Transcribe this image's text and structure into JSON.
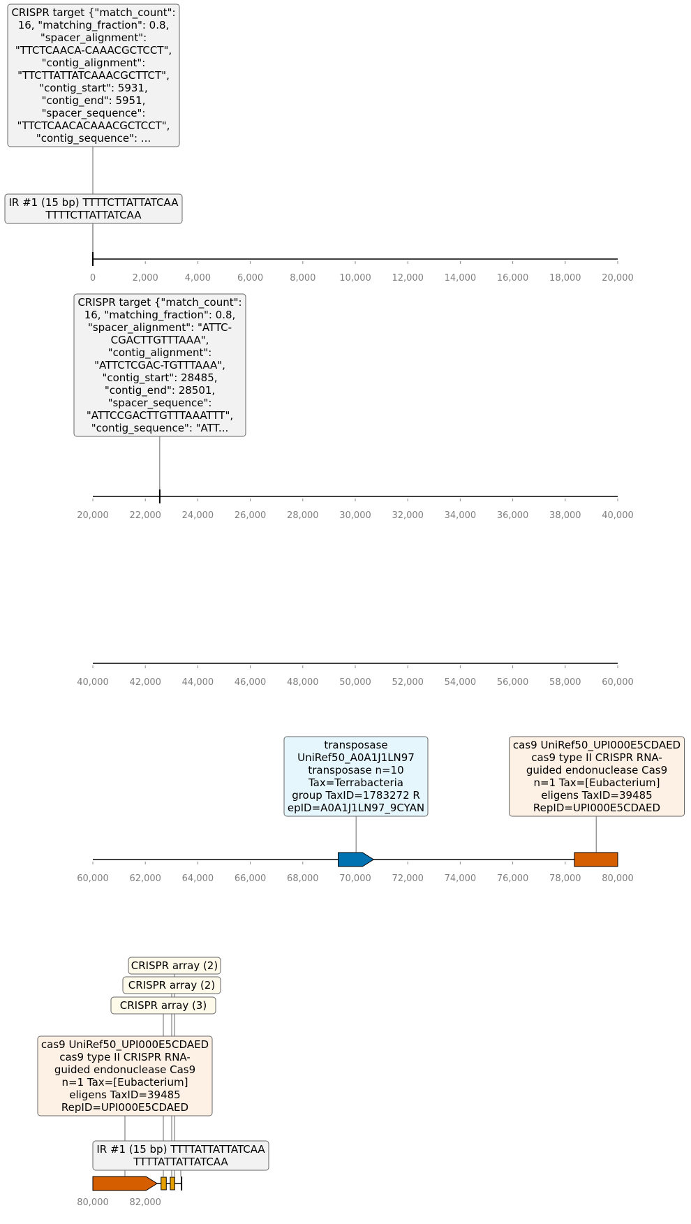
{
  "colors": {
    "axis": "#000000",
    "tick_label": "#808080",
    "cas9_fill": "#d55e00",
    "transposase_fill": "#0072b2",
    "crispr_array_fill": "#e69f00",
    "box_grey": "#f2f2f2",
    "box_blue": "#e5f6fd",
    "box_orange": "#fdf0e5",
    "box_cream": "#fdfaea"
  },
  "tracks": [
    {
      "range": [
        0,
        20000
      ],
      "ticks": [
        0,
        2000,
        4000,
        6000,
        8000,
        10000,
        12000,
        14000,
        16000,
        18000,
        20000
      ],
      "tick_labels": [
        "0",
        "2,000",
        "4,000",
        "6,000",
        "8,000",
        "10,000",
        "12,000",
        "14,000",
        "16,000",
        "18,000",
        "20,000"
      ],
      "features": [
        {
          "kind": "mark",
          "position": 0
        },
        {
          "kind": "mark",
          "position": 0
        }
      ],
      "labels": [
        {
          "anchor": 0,
          "style": "grey",
          "lines": [
            "CRISPR target {\"match_count\":",
            "16, \"matching_fraction\": 0.8,",
            "\"spacer_alignment\":",
            "\"TTCTCAACA-CAAACGCTCCT\",",
            "\"contig_alignment\":",
            "\"TTCTTATTATCAAACGCTTCT\",",
            "\"contig_start\": 5931,",
            "\"contig_end\": 5951,",
            "\"spacer_sequence\":",
            "\"TTCTCAACACAAACGCTCCT\",",
            "\"contig_sequence\": ..."
          ]
        },
        {
          "anchor": 0,
          "style": "grey",
          "lines": [
            "IR #1 (15 bp) TTTTCTTATTATCAA",
            "TTTTCTTATTATCAA"
          ]
        }
      ]
    },
    {
      "range": [
        20000,
        40000
      ],
      "ticks": [
        20000,
        22000,
        24000,
        26000,
        28000,
        30000,
        32000,
        34000,
        36000,
        38000,
        40000
      ],
      "tick_labels": [
        "20,000",
        "22,000",
        "24,000",
        "26,000",
        "28,000",
        "30,000",
        "32,000",
        "34,000",
        "36,000",
        "38,000",
        "40,000"
      ],
      "features": [
        {
          "kind": "mark",
          "position": 22550
        }
      ],
      "labels": [
        {
          "anchor": 22550,
          "style": "grey",
          "lines": [
            "CRISPR target {\"match_count\":",
            "16, \"matching_fraction\": 0.8,",
            "\"spacer_alignment\": \"ATTC-",
            "CGACTTGTTTAAA\",",
            "\"contig_alignment\":",
            "\"ATTCTCGAC-TGTTTAAA\",",
            "\"contig_start\": 28485,",
            "\"contig_end\": 28501,",
            "\"spacer_sequence\":",
            "\"ATTCCGACTTGTTTAAATTT\",",
            "\"contig_sequence\": \"ATT..."
          ]
        }
      ]
    },
    {
      "range": [
        40000,
        60000
      ],
      "ticks": [
        40000,
        42000,
        44000,
        46000,
        48000,
        50000,
        52000,
        54000,
        56000,
        58000,
        60000
      ],
      "tick_labels": [
        "40,000",
        "42,000",
        "44,000",
        "46,000",
        "48,000",
        "50,000",
        "52,000",
        "54,000",
        "56,000",
        "58,000",
        "60,000"
      ],
      "features": [],
      "labels": []
    },
    {
      "range": [
        60000,
        80000
      ],
      "ticks": [
        60000,
        62000,
        64000,
        66000,
        68000,
        70000,
        72000,
        74000,
        76000,
        78000,
        80000
      ],
      "tick_labels": [
        "60,000",
        "62,000",
        "64,000",
        "66,000",
        "68,000",
        "70,000",
        "72,000",
        "74,000",
        "76,000",
        "78,000",
        "80,000"
      ],
      "features": [
        {
          "kind": "gene",
          "start": 69350,
          "end": 70700,
          "strand": 1,
          "color": "transposase_fill"
        },
        {
          "kind": "gene",
          "start": 78350,
          "end": 80000,
          "strand": 1,
          "color": "cas9_fill"
        }
      ],
      "labels": [
        {
          "anchor": 70030,
          "style": "blue",
          "lines": [
            "transposase",
            "UniRef50_A0A1J1LN97",
            "transposase n=10",
            "Tax=Terrabacteria",
            "group TaxID=1783272 R",
            "epID=A0A1J1LN97_9CYAN"
          ]
        },
        {
          "anchor": 79180,
          "style": "orange",
          "lines": [
            "cas9 UniRef50_UPI000E5CDAED",
            "cas9 type II CRISPR RNA-",
            "guided endonuclease Cas9",
            "n=1 Tax=[Eubacterium]",
            "eligens TaxID=39485",
            "RepID=UPI000E5CDAED"
          ]
        }
      ]
    },
    {
      "range": [
        80000,
        100000
      ],
      "ticks": [
        80000,
        82000
      ],
      "tick_labels": [
        "80,000",
        "82,000"
      ],
      "axis_end": 83400,
      "features": [
        {
          "kind": "gene",
          "start": 80000,
          "end": 82450,
          "strand": 1,
          "color": "cas9_fill"
        },
        {
          "kind": "block",
          "start": 82600,
          "end": 82800,
          "color": "crispr_array_fill"
        },
        {
          "kind": "block",
          "start": 82950,
          "end": 83120,
          "color": "crispr_array_fill"
        },
        {
          "kind": "mark",
          "position": 83380
        }
      ],
      "labels": [
        {
          "anchor": 82070,
          "style": "cream",
          "lines": [
            "CRISPR array (2)"
          ]
        },
        {
          "anchor": 81950,
          "style": "cream",
          "lines": [
            "CRISPR array (2)"
          ]
        },
        {
          "anchor": 81800,
          "style": "cream",
          "lines": [
            "CRISPR array (3)"
          ]
        },
        {
          "anchor": 81230,
          "style": "orange",
          "lines": [
            "cas9 UniRef50_UPI000E5CDAED",
            "cas9 type II CRISPR RNA-",
            "guided endonuclease Cas9",
            "n=1 Tax=[Eubacterium]",
            "eligens TaxID=39485",
            "RepID=UPI000E5CDAED"
          ]
        },
        {
          "anchor": 83380,
          "style": "grey",
          "lines": [
            "IR #1 (15 bp) TTTTATTATTATCAA",
            "TTTTATTATTATCAA"
          ]
        }
      ]
    }
  ]
}
